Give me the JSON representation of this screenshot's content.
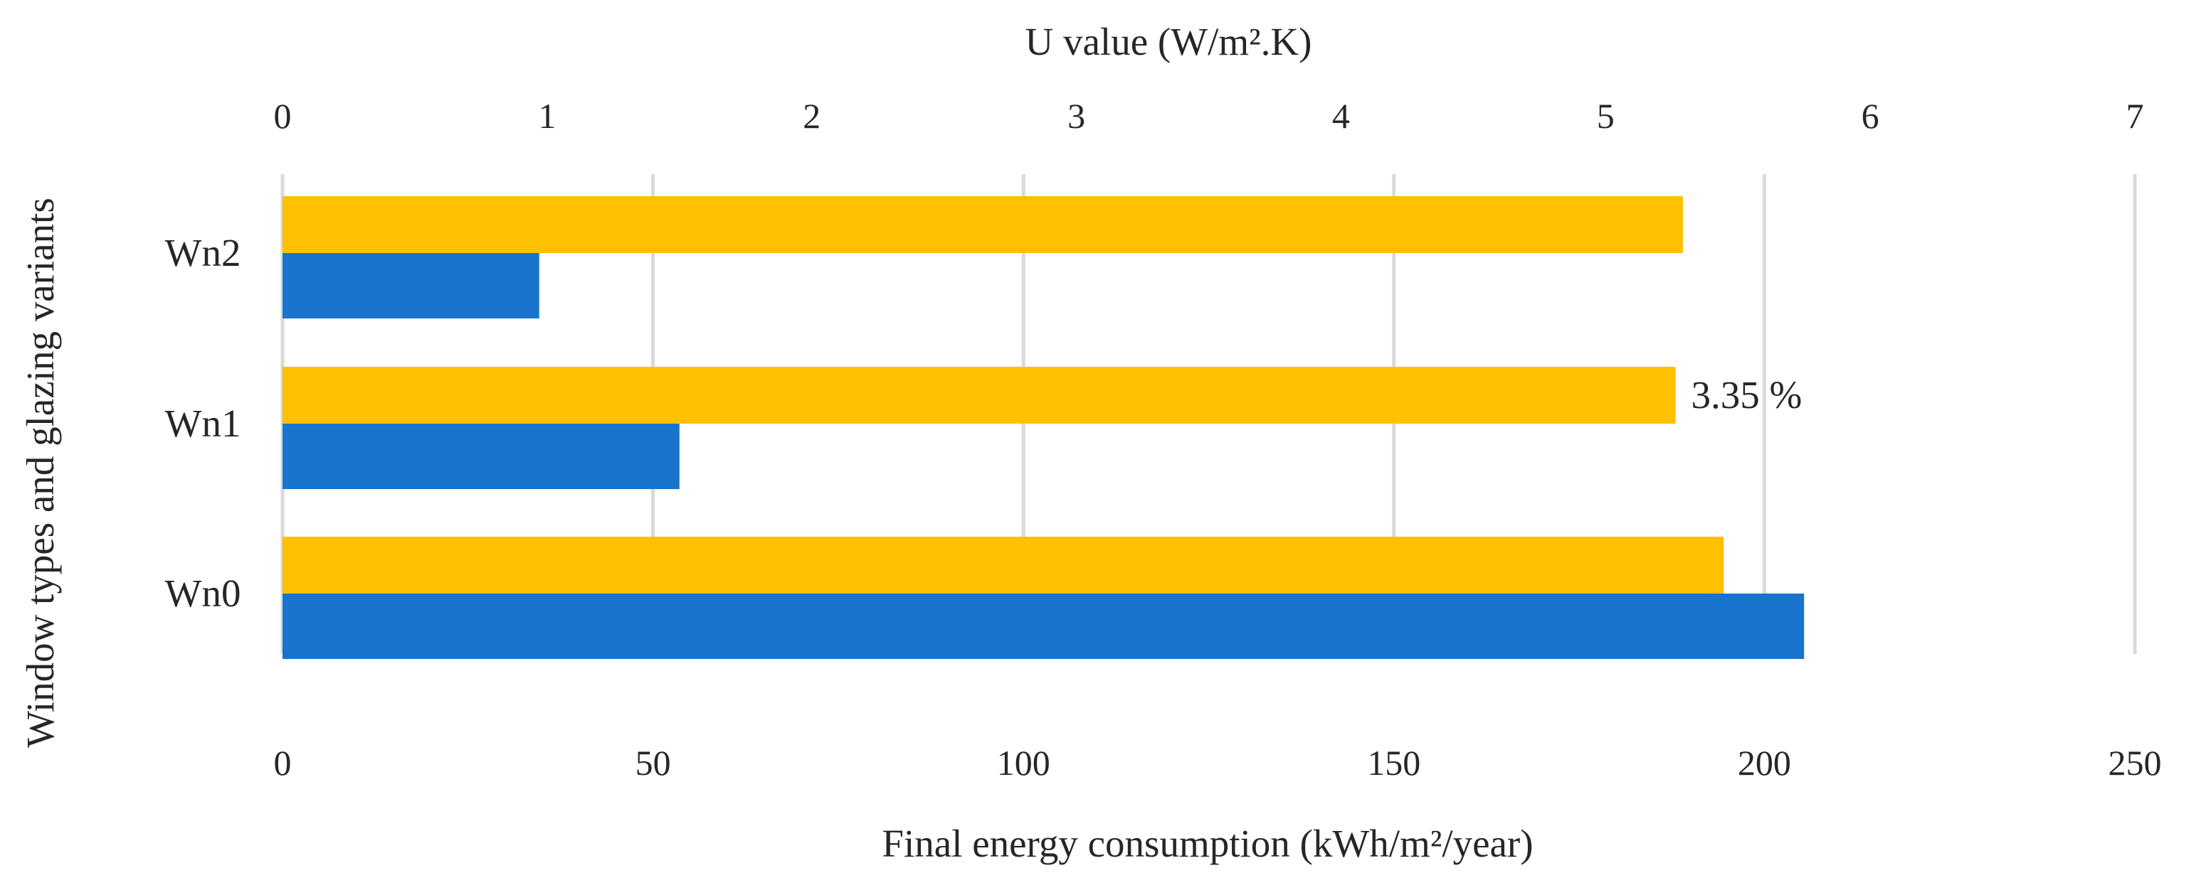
{
  "chart_data": {
    "type": "bar",
    "orientation": "horizontal",
    "categories": [
      "Wn2",
      "Wn1",
      "Wn0"
    ],
    "series": [
      {
        "name": "Final energy consumption",
        "axis": "bottom",
        "color": "#FFC000",
        "values": [
          189.0,
          188.0,
          194.5
        ]
      },
      {
        "name": "U value",
        "axis": "top",
        "color": "#1874CD",
        "values": [
          0.97,
          1.5,
          5.75
        ]
      }
    ],
    "top_axis": {
      "label": "U value (W/m².K)",
      "min": 0,
      "max": 7,
      "ticks": [
        "0",
        "1",
        "2",
        "3",
        "4",
        "5",
        "6",
        "7"
      ]
    },
    "bottom_axis": {
      "label": "Final energy consumption (kWh/m²/year)",
      "min": 0,
      "max": 250,
      "ticks": [
        "0",
        "50",
        "100",
        "150",
        "200",
        "250"
      ]
    },
    "ylabel": "Window types and glazing variants",
    "annotations": [
      {
        "category": "Wn1",
        "series": "Final energy consumption",
        "text": "3.35 %"
      }
    ],
    "grid": true
  }
}
